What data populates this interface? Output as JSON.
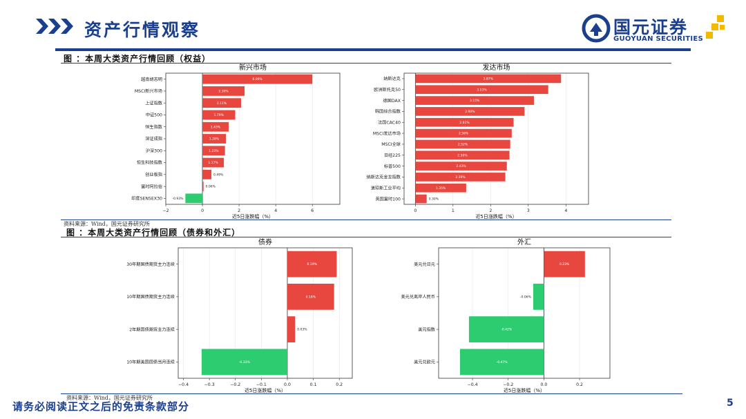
{
  "header": {
    "title": "资产行情观察",
    "logo_cn": "国元证券",
    "logo_en": "GUOYUAN SECURITIES"
  },
  "figure1": {
    "title": "图 ：本周大类资产行情回顾（权益）",
    "source": "资料来源：Wind，国元证券研究所"
  },
  "figure2": {
    "title": "图 ：本周大类资产行情回顾（债券和外汇）",
    "source": "资料来源：Wind，国元证券研究所"
  },
  "footer": {
    "disclaimer": "请务必阅读正文之后的免责条款部分",
    "page": "5"
  },
  "colors": {
    "positive": "#e8473f",
    "negative": "#2ecc71",
    "brand": "#1a3f8f"
  },
  "chart_data": [
    {
      "type": "bar",
      "orientation": "horizontal",
      "title": "新兴市场",
      "xlabel": "近5日涨跌幅（%）",
      "xlim": [
        -2,
        7.5
      ],
      "xticks": [
        -2,
        0,
        2,
        4,
        6
      ],
      "categories": [
        "越南胡志明",
        "MSCI新兴市场",
        "上证指数",
        "中证500",
        "恒生指数",
        "深证成指",
        "沪深300",
        "恒生科技指数",
        "创业板指",
        "富时阿拉伯",
        "印度SENSEX30"
      ],
      "values": [
        6.0,
        2.3,
        2.11,
        1.79,
        1.43,
        1.28,
        1.23,
        1.17,
        0.49,
        0.06,
        -0.93
      ],
      "labels": [
        "6.00%",
        "2.30%",
        "2.11%",
        "1.79%",
        "1.43%",
        "1.28%",
        "1.23%",
        "1.17%",
        "0.49%",
        "0.06%",
        "-0.93%"
      ]
    },
    {
      "type": "bar",
      "orientation": "horizontal",
      "title": "发达市场",
      "xlabel": "近5日涨跌幅（%）",
      "xlim": [
        -0.3,
        4.6
      ],
      "xticks": [
        0,
        1,
        2,
        3,
        4
      ],
      "categories": [
        "纳斯达克",
        "欧洲斯托克50",
        "德国DAX",
        "韩国综合指数",
        "法国CAC40",
        "MSCI发达市场",
        "MSCI全球",
        "日经225",
        "标普500",
        "纳斯达克金龙指数",
        "道琼斯工业平均",
        "英国富时100"
      ],
      "values": [
        3.87,
        3.53,
        3.15,
        2.9,
        2.61,
        2.56,
        2.52,
        2.5,
        2.43,
        2.39,
        1.35,
        0.3
      ],
      "labels": [
        "3.87%",
        "3.53%",
        "3.15%",
        "2.90%",
        "2.61%",
        "2.56%",
        "2.52%",
        "2.50%",
        "2.43%",
        "2.39%",
        "1.35%",
        "0.30%"
      ]
    },
    {
      "type": "bar",
      "orientation": "horizontal",
      "title": "债券",
      "xlabel": "近5日涨跌幅（%）",
      "xlim": [
        -0.42,
        0.25
      ],
      "xticks": [
        -0.4,
        -0.3,
        -0.2,
        -0.1,
        0.0,
        0.1,
        0.2
      ],
      "xtick_labels": [
        "-0.4",
        "-0.3",
        "-0.2",
        "-0.1",
        "0.0",
        "0.1",
        "0.2"
      ],
      "categories": [
        "30年期国债期货主力连续",
        "10年期国债期货主力连续",
        "2年期国债期货主力连续",
        "10年期美国国债当月连续"
      ],
      "values": [
        0.19,
        0.18,
        0.03,
        -0.33
      ],
      "labels": [
        "0.19%",
        "0.18%",
        "0.03%",
        "-0.33%"
      ]
    },
    {
      "type": "bar",
      "orientation": "horizontal",
      "title": "外汇",
      "xlabel": "近5日涨跌幅（%）",
      "xlim": [
        -0.59,
        0.37
      ],
      "xticks": [
        -0.4,
        -0.2,
        0.0,
        0.2
      ],
      "xtick_labels": [
        "-0.4",
        "-0.2",
        "0.0",
        "0.2"
      ],
      "categories": [
        "美元兑日元",
        "美元兑离岸人民币",
        "美元指数",
        "美元兑欧元"
      ],
      "values": [
        0.23,
        -0.06,
        -0.42,
        -0.47
      ],
      "labels": [
        "0.23%",
        "-0.06%",
        "-0.42%",
        "-0.47%"
      ]
    }
  ]
}
